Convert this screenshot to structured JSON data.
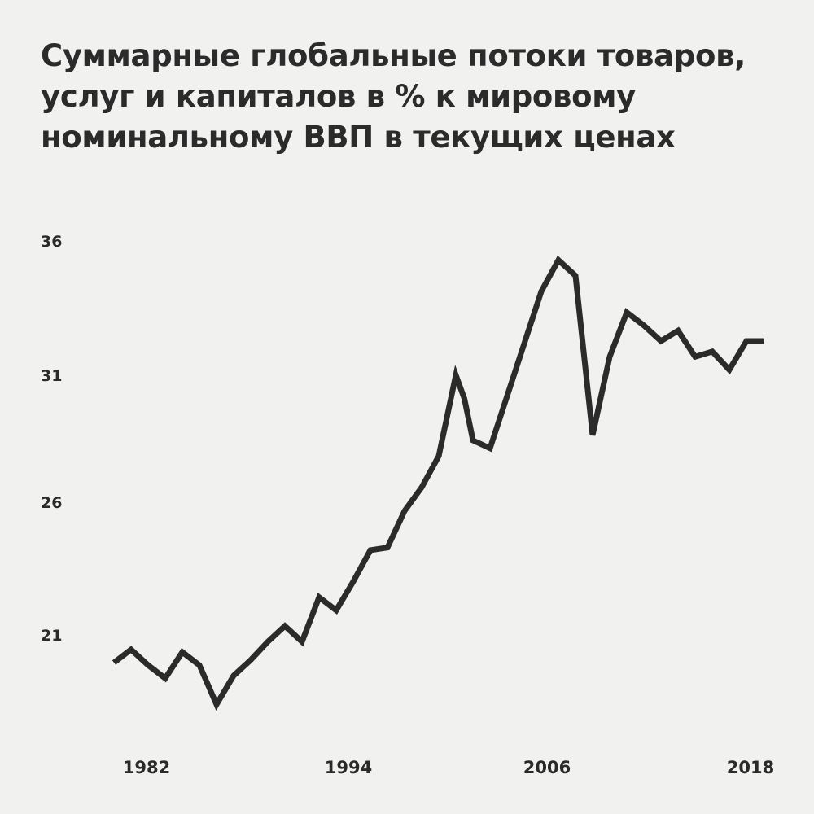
{
  "chart_data": {
    "type": "line",
    "title": "Суммарные глобальные потоки товаров, услуг и капиталов в % к мировому номинальному ВВП в текущих ценах",
    "xlabel": "",
    "ylabel": "",
    "x_ticks": [
      "1982",
      "1994",
      "2006",
      "2018"
    ],
    "y_ticks": [
      "36",
      "31",
      "26",
      "21"
    ],
    "xlim": [
      1980,
      2018
    ],
    "ylim": [
      18,
      36
    ],
    "grid": false,
    "legend": "none",
    "line_color": "#2b2b2b",
    "series": [
      {
        "x": [
          1980,
          1981,
          1982,
          1983,
          1984,
          1985,
          1986,
          1987,
          1988,
          1989,
          1990,
          1991,
          1992,
          1993,
          1994,
          1995,
          1996,
          1997,
          1998,
          1999,
          2000,
          2000.5,
          2001,
          2002,
          2003,
          2004,
          2005,
          2006,
          2007,
          2008,
          2009,
          2010,
          2011,
          2012,
          2013,
          2014,
          2015,
          2016,
          2017,
          2018
        ],
        "y": [
          19.9,
          20.4,
          19.8,
          19.3,
          20.3,
          19.8,
          18.3,
          19.4,
          20.0,
          20.7,
          21.3,
          20.7,
          22.4,
          21.9,
          23.0,
          24.2,
          24.3,
          25.7,
          26.6,
          27.8,
          30.9,
          30.0,
          28.4,
          28.1,
          30.1,
          32.1,
          34.1,
          35.3,
          34.7,
          28.6,
          31.6,
          33.3,
          32.8,
          32.2,
          32.6,
          31.6,
          31.8,
          31.1,
          32.2,
          32.2
        ]
      }
    ]
  }
}
